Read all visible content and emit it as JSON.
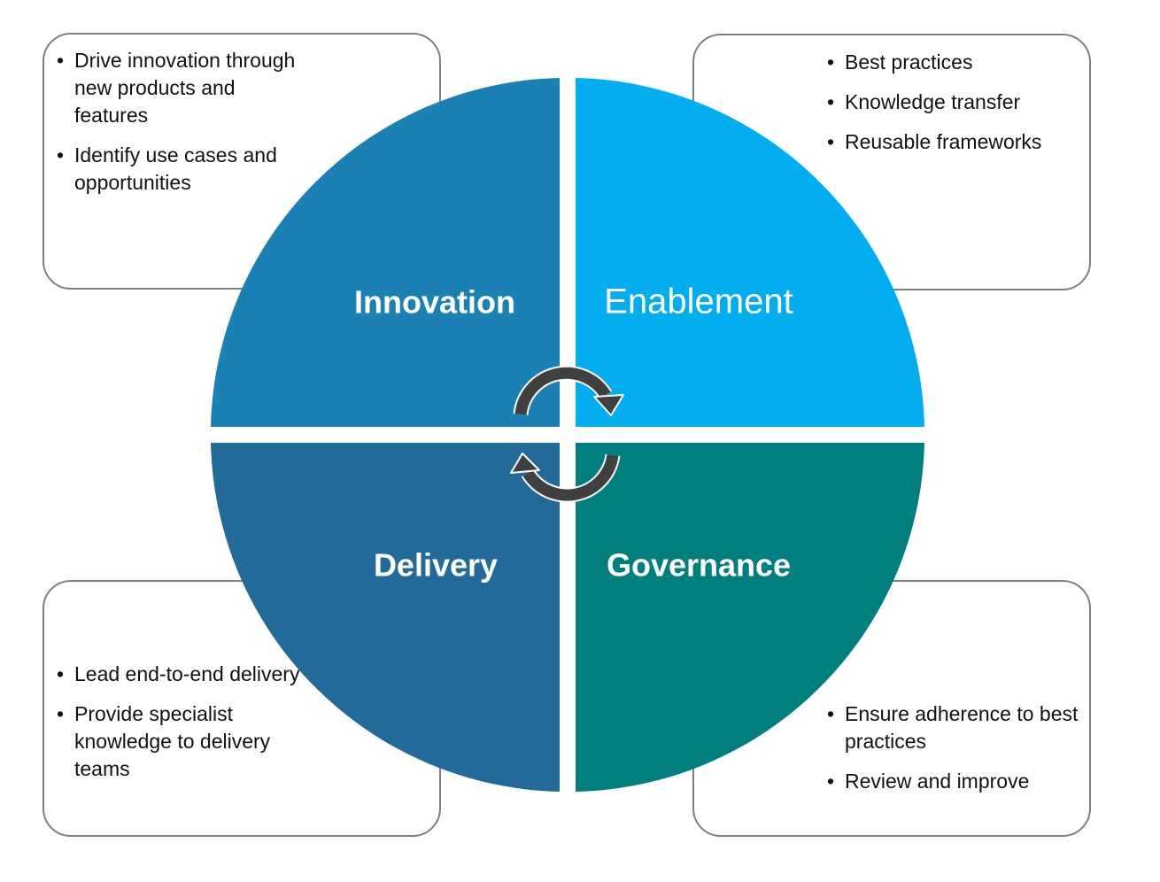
{
  "quadrants": {
    "innovation": {
      "title": "Innovation",
      "color": "#1b80b4"
    },
    "enablement": {
      "title": "Enablement",
      "color": "#02aef0"
    },
    "delivery": {
      "title": "Delivery",
      "color": "#226a9a"
    },
    "governance": {
      "title": "Governance",
      "color": "#007f7e"
    }
  },
  "cards": {
    "innovation": {
      "items": [
        "Drive innovation through new products and features",
        "Identify use cases and opportunities"
      ]
    },
    "enablement": {
      "items": [
        "Best practices",
        "Knowledge transfer",
        "Reusable frameworks"
      ]
    },
    "delivery": {
      "items": [
        "Lead end-to-end delivery",
        "Provide specialist knowledge to delivery teams"
      ]
    },
    "governance": {
      "items": [
        "Ensure adherence to best practices",
        "Review and improve"
      ]
    }
  },
  "cycle": {
    "arrow_color": "#404040",
    "icon": "cycle-arrows-icon"
  }
}
